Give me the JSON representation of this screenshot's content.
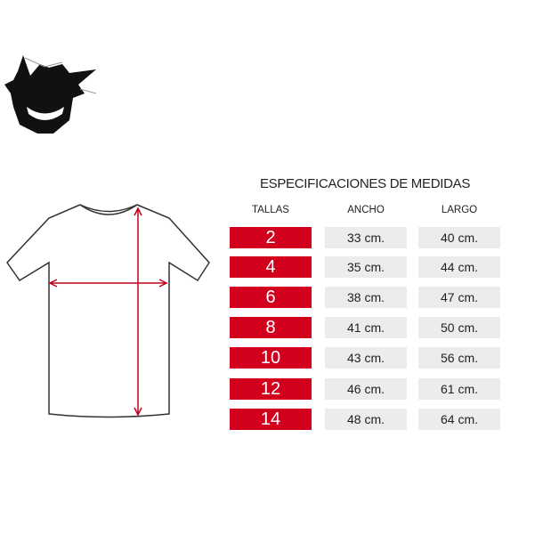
{
  "colors": {
    "accent": "#d3001d",
    "cell": "#ececec"
  },
  "logo": {
    "icon": "ghost-monster-logo"
  },
  "table": {
    "title": "ESPECIFICACIONES DE MEDIDAS",
    "headers": [
      "TALLAS",
      "ANCHO",
      "LARGO"
    ],
    "rows": [
      {
        "talla": "2",
        "ancho": "33 cm.",
        "largo": "40 cm."
      },
      {
        "talla": "4",
        "ancho": "35 cm.",
        "largo": "44 cm."
      },
      {
        "talla": "6",
        "ancho": "38 cm.",
        "largo": "47 cm."
      },
      {
        "talla": "8",
        "ancho": "41 cm.",
        "largo": "50 cm."
      },
      {
        "talla": "10",
        "ancho": "43 cm.",
        "largo": "56 cm."
      },
      {
        "talla": "12",
        "ancho": "46 cm.",
        "largo": "61 cm."
      },
      {
        "talla": "14",
        "ancho": "48 cm.",
        "largo": "64 cm."
      }
    ]
  }
}
